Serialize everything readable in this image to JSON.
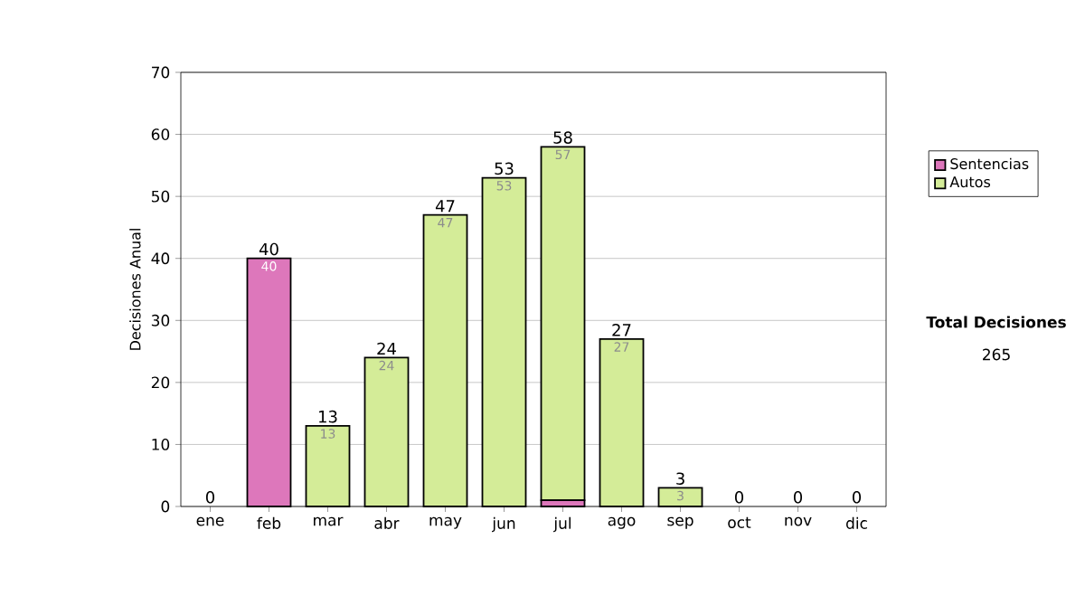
{
  "chart_data": {
    "type": "bar",
    "stacked": true,
    "ylabel": "Decisiones Anual",
    "categories": [
      "ene",
      "feb",
      "mar",
      "abr",
      "may",
      "jun",
      "jul",
      "ago",
      "sep",
      "oct",
      "nov",
      "dic"
    ],
    "series": [
      {
        "name": "Sentencias",
        "color": "#dd77bb",
        "values": [
          0,
          40,
          0,
          0,
          0,
          0,
          1,
          0,
          0,
          0,
          0,
          0
        ],
        "value_labels": [
          null,
          "40",
          null,
          null,
          null,
          null,
          null,
          null,
          null,
          null,
          null,
          null
        ]
      },
      {
        "name": "Autos",
        "color": "#d4ec98",
        "values": [
          0,
          0,
          13,
          24,
          47,
          53,
          57,
          27,
          3,
          0,
          0,
          0
        ],
        "value_labels": [
          null,
          null,
          "13",
          "24",
          "47",
          "53",
          "57",
          "27",
          "3",
          null,
          null,
          null
        ]
      }
    ],
    "totals": [
      "0",
      "40",
      "13",
      "24",
      "47",
      "53",
      "58",
      "27",
      "3",
      "0",
      "0",
      "0"
    ],
    "ylim": [
      0,
      70
    ],
    "yticks": [
      0,
      10,
      20,
      30,
      40,
      50,
      60,
      70
    ],
    "grid": "y",
    "legend": "right",
    "annotations": [
      "Total Decisiones",
      "265"
    ]
  }
}
